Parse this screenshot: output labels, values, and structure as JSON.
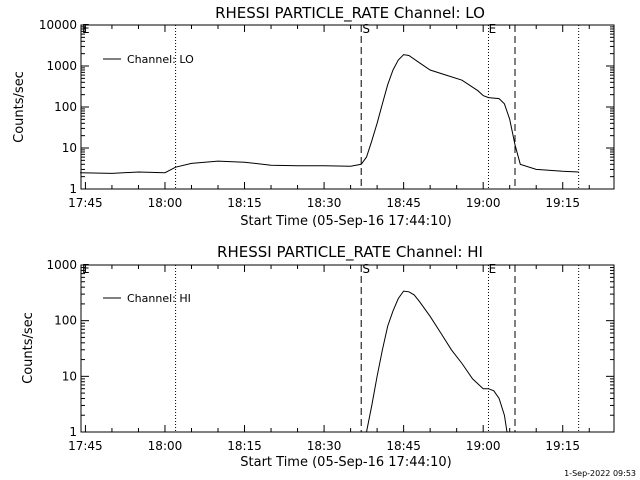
{
  "chart_data": [
    {
      "type": "line",
      "title": "RHESSI PARTICLE_RATE Channel: LO",
      "xlabel": "Start Time (05-Sep-16 17:44:10)",
      "ylabel": "Counts/sec",
      "yscale": "log",
      "ylim": [
        1,
        10000
      ],
      "xlim": [
        "17:44:10",
        "19:24:40"
      ],
      "x_ticks": [
        "17:45",
        "18:00",
        "18:15",
        "18:30",
        "18:45",
        "19:00",
        "19:15"
      ],
      "y_ticks": [
        "1",
        "10",
        "100",
        "1000",
        "10000"
      ],
      "legend": {
        "position": "top-left",
        "entries": [
          "Channel: LO"
        ]
      },
      "markers": {
        "start": "S",
        "end": "E",
        "corner": "E"
      },
      "series": [
        {
          "name": "Channel: LO",
          "x": [
            "17:44",
            "17:50",
            "17:55",
            "18:00",
            "18:02",
            "18:05",
            "18:10",
            "18:15",
            "18:20",
            "18:25",
            "18:30",
            "18:35",
            "18:37",
            "18:38",
            "18:39",
            "18:40",
            "18:41",
            "18:42",
            "18:43",
            "18:44",
            "18:45",
            "18:46",
            "18:48",
            "18:50",
            "18:53",
            "18:56",
            "18:59",
            "19:00",
            "19:01",
            "19:03",
            "19:04",
            "19:05",
            "19:06",
            "19:07",
            "19:10",
            "19:15",
            "19:18"
          ],
          "values": [
            2.5,
            2.4,
            2.6,
            2.5,
            3.4,
            4.2,
            4.8,
            4.5,
            3.8,
            3.7,
            3.7,
            3.6,
            4,
            6,
            15,
            40,
            120,
            350,
            800,
            1400,
            1900,
            1800,
            1200,
            800,
            600,
            450,
            250,
            190,
            170,
            160,
            120,
            50,
            12,
            4,
            3,
            2.7,
            2.6
          ]
        }
      ]
    },
    {
      "type": "line",
      "title": "RHESSI PARTICLE_RATE Channel: HI",
      "xlabel": "Start Time (05-Sep-16 17:44:10)",
      "ylabel": "Counts/sec",
      "yscale": "log",
      "ylim": [
        1,
        1000
      ],
      "xlim": [
        "17:44:10",
        "19:24:40"
      ],
      "x_ticks": [
        "17:45",
        "18:00",
        "18:15",
        "18:30",
        "18:45",
        "19:00",
        "19:15"
      ],
      "y_ticks": [
        "1",
        "10",
        "100",
        "1000"
      ],
      "legend": {
        "position": "top-left",
        "entries": [
          "Channel: HI"
        ]
      },
      "markers": {
        "start": "S",
        "end": "E",
        "corner": "E"
      },
      "series": [
        {
          "name": "Channel: HI",
          "x": [
            "18:38",
            "18:39",
            "18:40",
            "18:41",
            "18:42",
            "18:43",
            "18:44",
            "18:45",
            "18:46",
            "18:47",
            "18:48",
            "18:50",
            "18:52",
            "18:54",
            "18:56",
            "18:58",
            "19:00",
            "19:01",
            "19:02",
            "19:03",
            "19:04",
            "19:04.5"
          ],
          "values": [
            1,
            3,
            10,
            30,
            80,
            150,
            250,
            340,
            330,
            290,
            220,
            120,
            60,
            30,
            17,
            9,
            6,
            6,
            5.5,
            4,
            2,
            1
          ]
        }
      ]
    }
  ],
  "vlines": {
    "dotted": [
      "18:02",
      "19:01",
      "19:18"
    ],
    "dashed": [
      "18:37",
      "19:06"
    ]
  },
  "footer": {
    "timestamp": "1-Sep-2022 09:53"
  },
  "colors": {
    "line": "#000000",
    "background": "#ffffff"
  }
}
